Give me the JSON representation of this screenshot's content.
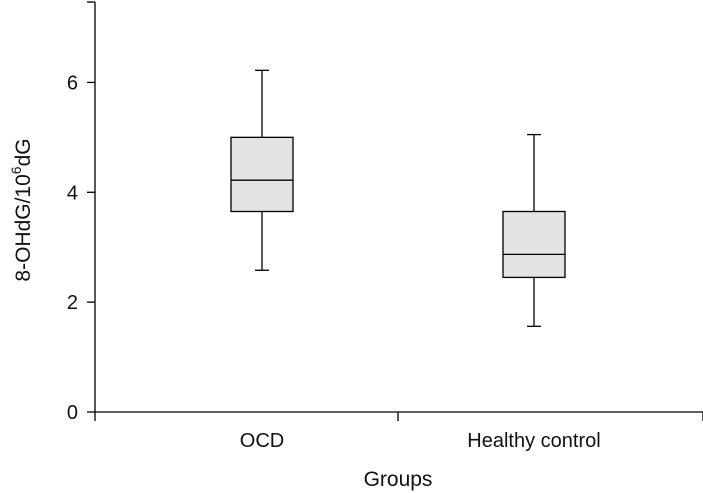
{
  "chart_data": {
    "type": "box",
    "title": "",
    "xlabel": "Groups",
    "ylabel_base": "8-OHdG/10",
    "ylabel_exponent": "6",
    "ylabel_suffix": "dG",
    "ylim": [
      0,
      7.5
    ],
    "yticks": [
      0,
      2,
      4,
      6
    ],
    "ytick_labels": [
      "0",
      "2",
      "4",
      "6"
    ],
    "categories": [
      "OCD",
      "Healthy control"
    ],
    "series": [
      {
        "name": "OCD",
        "min": 2.58,
        "q1": 3.65,
        "median": 4.22,
        "q3": 5.0,
        "max": 6.22
      },
      {
        "name": "Healthy control",
        "min": 1.56,
        "q1": 2.45,
        "median": 2.87,
        "q3": 3.65,
        "max": 5.05
      }
    ],
    "colors": {
      "box_fill": "#e3e3e3",
      "stroke": "#000000"
    }
  }
}
